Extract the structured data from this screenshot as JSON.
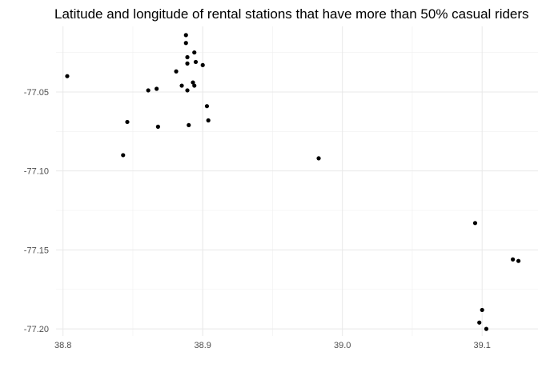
{
  "chart_data": {
    "type": "scatter",
    "title": "Latitude and longitude of rental stations that have more than 50% casual riders",
    "xlabel": "",
    "ylabel": "",
    "xlim": [
      38.795,
      39.14
    ],
    "ylim": [
      -77.2045,
      -77.0085
    ],
    "x_ticks": [
      38.8,
      38.9,
      39.0,
      39.1
    ],
    "x_tick_labels": [
      "38.8",
      "38.9",
      "39.0",
      "39.1"
    ],
    "y_ticks": [
      -77.05,
      -77.1,
      -77.15,
      -77.2
    ],
    "y_tick_labels": [
      "-77.05",
      "-77.10",
      "-77.15",
      "-77.20"
    ],
    "grid": true,
    "legend": "none",
    "point_color": "#000000",
    "points": [
      {
        "x": 38.803,
        "y": -77.04
      },
      {
        "x": 38.843,
        "y": -77.09
      },
      {
        "x": 38.846,
        "y": -77.069
      },
      {
        "x": 38.861,
        "y": -77.049
      },
      {
        "x": 38.867,
        "y": -77.048
      },
      {
        "x": 38.868,
        "y": -77.072
      },
      {
        "x": 38.881,
        "y": -77.037
      },
      {
        "x": 38.885,
        "y": -77.046
      },
      {
        "x": 38.888,
        "y": -77.014
      },
      {
        "x": 38.888,
        "y": -77.019
      },
      {
        "x": 38.889,
        "y": -77.028
      },
      {
        "x": 38.889,
        "y": -77.032
      },
      {
        "x": 38.889,
        "y": -77.049
      },
      {
        "x": 38.89,
        "y": -77.071
      },
      {
        "x": 38.893,
        "y": -77.044
      },
      {
        "x": 38.894,
        "y": -77.046
      },
      {
        "x": 38.894,
        "y": -77.025
      },
      {
        "x": 38.895,
        "y": -77.031
      },
      {
        "x": 38.9,
        "y": -77.033
      },
      {
        "x": 38.903,
        "y": -77.059
      },
      {
        "x": 38.904,
        "y": -77.068
      },
      {
        "x": 38.983,
        "y": -77.092
      },
      {
        "x": 39.095,
        "y": -77.133
      },
      {
        "x": 39.098,
        "y": -77.196
      },
      {
        "x": 39.1,
        "y": -77.188
      },
      {
        "x": 39.103,
        "y": -77.2
      },
      {
        "x": 39.122,
        "y": -77.156
      },
      {
        "x": 39.126,
        "y": -77.157
      }
    ]
  }
}
